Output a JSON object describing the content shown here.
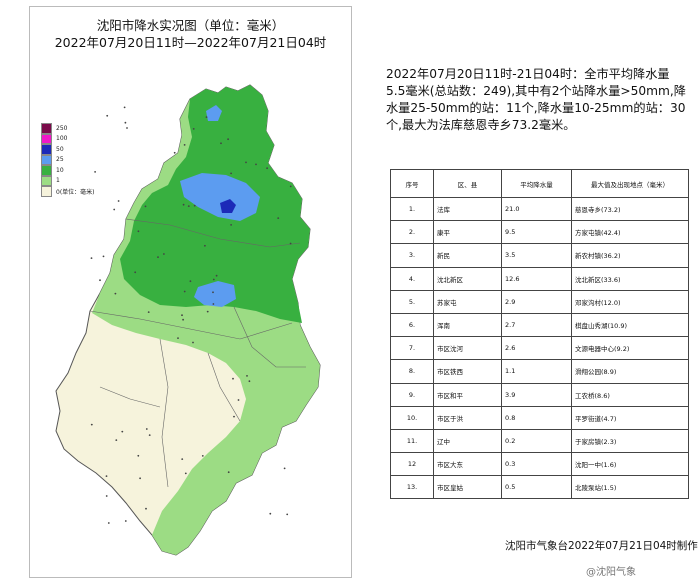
{
  "map": {
    "title": "沈阳市降水实况图（单位：毫米）",
    "subtitle": "2022年07月20日11时—2022年07月21日04时",
    "legend": [
      {
        "label": "250",
        "color": "#7a0a4a"
      },
      {
        "label": "100",
        "color": "#f018c8"
      },
      {
        "label": "50",
        "color": "#1c2ab8"
      },
      {
        "label": "25",
        "color": "#5c9cf0"
      },
      {
        "label": "10",
        "color": "#38b040"
      },
      {
        "label": "1",
        "color": "#9cdc84"
      },
      {
        "label": "0(单位：毫米)",
        "color": "#f6f3dc"
      }
    ]
  },
  "summary": "2022年07月20日11时-21日04时：全市平均降水量5.5毫米(总站数：249),其中有2个站降水量>50mm,降水量25-50mm的站：11个,降水量10-25mm的站：30个,最大为法库慈恩寺乡73.2毫米。",
  "table": {
    "headers": [
      "序号",
      "区、县",
      "平均降水量",
      "最大值及出现地点（毫米）"
    ],
    "rows": [
      [
        "1.",
        "法库",
        "21.0",
        "慈恩寺乡(73.2)"
      ],
      [
        "2.",
        "康平",
        "9.5",
        "方家屯镇(42.4)"
      ],
      [
        "3.",
        "新民",
        "3.5",
        "新农村镇(36.2)"
      ],
      [
        "4.",
        "沈北新区",
        "12.6",
        "沈北新区(33.6)"
      ],
      [
        "5.",
        "苏家屯",
        "2.9",
        "邓家沟村(12.0)"
      ],
      [
        "6.",
        "浑南",
        "2.7",
        "棋盘山秀湖(10.9)"
      ],
      [
        "7.",
        "市区沈河",
        "2.6",
        "文源电器中心(9.2)"
      ],
      [
        "8.",
        "市区铁西",
        "1.1",
        "滑翔公园(8.9)"
      ],
      [
        "9.",
        "市区和平",
        "3.9",
        "工农桥(8.6)"
      ],
      [
        "10.",
        "市区于洪",
        "0.8",
        "平罗街道(4.7)"
      ],
      [
        "11.",
        "辽中",
        "0.2",
        "于家房镇(2.3)"
      ],
      [
        "12",
        "市区大东",
        "0.3",
        "沈阳一中(1.6)"
      ],
      [
        "13.",
        "市区皇姑",
        "0.5",
        "北陵泵站(1.5)"
      ]
    ]
  },
  "footer": "沈阳市气象台2022年07月21日04时制作",
  "watermark": "@沈阳气象"
}
